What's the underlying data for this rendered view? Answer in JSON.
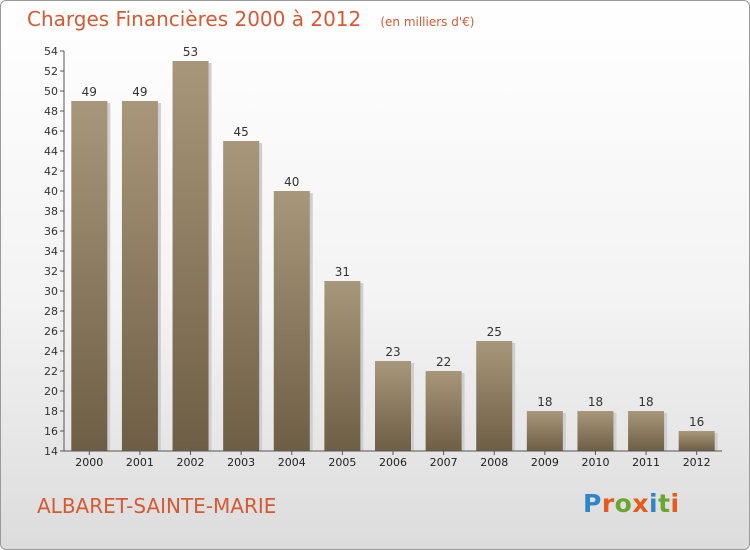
{
  "header": {
    "title": "Charges Financières 2000 à 2012",
    "subtitle": "(en milliers d'€)"
  },
  "commune": "ALBARET-SAINTE-MARIE",
  "logo": {
    "text": "Proxiti",
    "letter_colors": [
      "#2f86c6",
      "#e8591a",
      "#6aa72f",
      "#e8591a",
      "#2f86c6",
      "#6aa72f",
      "#e8591a"
    ]
  },
  "chart_data": {
    "type": "bar",
    "title": "Charges Financières 2000 à 2012",
    "subtitle": "(en milliers d'€)",
    "xlabel": "",
    "ylabel": "",
    "categories": [
      "2000",
      "2001",
      "2002",
      "2003",
      "2004",
      "2005",
      "2006",
      "2007",
      "2008",
      "2009",
      "2010",
      "2011",
      "2012"
    ],
    "values": [
      49,
      49,
      53,
      45,
      40,
      31,
      23,
      22,
      25,
      18,
      18,
      18,
      16
    ],
    "ylim": [
      14,
      54
    ],
    "yticks": [
      14,
      16,
      18,
      20,
      22,
      24,
      26,
      28,
      30,
      32,
      34,
      36,
      38,
      40,
      42,
      44,
      46,
      48,
      50,
      52,
      54
    ],
    "grid": false,
    "bar_color": "#8c7a5e"
  }
}
